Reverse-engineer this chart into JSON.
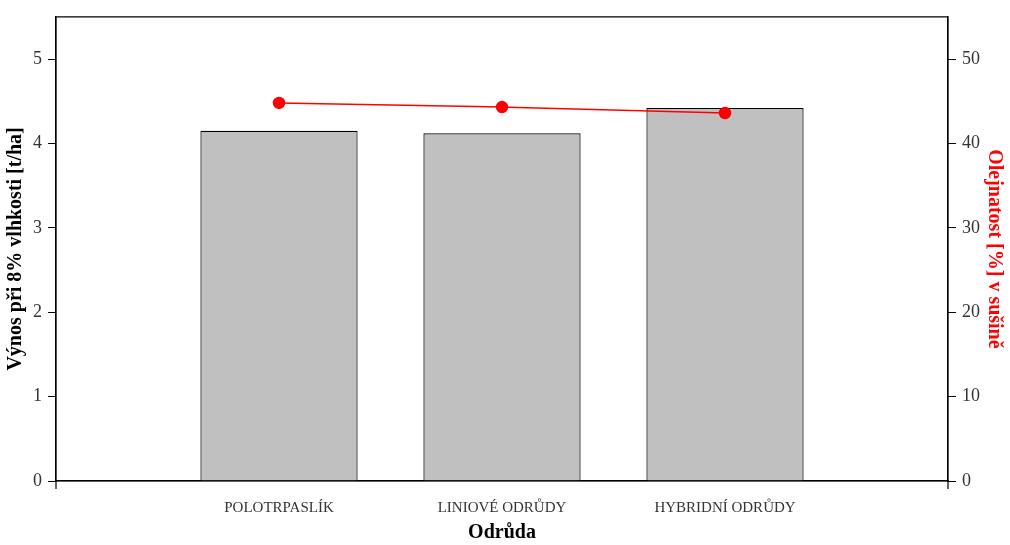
{
  "chart_data": {
    "type": "bar",
    "categories": [
      null,
      "POLOTRPASLÍK",
      "LINIOVÉ ODRŮDY",
      "HYBRIDNÍ ODRŮDY",
      null
    ],
    "xlabel": "Odrůda",
    "ylabel": "Výnos při 8% vlhkosti [t/ha]",
    "y2label": "Olejnatost [%] v sušině",
    "series": [
      {
        "color": "#c0c0c0",
        "values": [
          null,
          4.15,
          4.12,
          4.42,
          null
        ]
      },
      {
        "type": "line",
        "axis": "y2",
        "color": "#ff0000",
        "values": [
          null,
          44.8,
          44.3,
          43.6,
          null
        ]
      }
    ],
    "ylim": [
      0,
      5.5
    ],
    "yticks": [
      0,
      1,
      2,
      3,
      4,
      5
    ],
    "y2lim": [
      0,
      55
    ],
    "y2ticks": [
      0,
      10,
      20,
      30,
      40,
      50
    ],
    "grid": false,
    "legend": false,
    "marker": "circle",
    "line_style": "solid"
  }
}
